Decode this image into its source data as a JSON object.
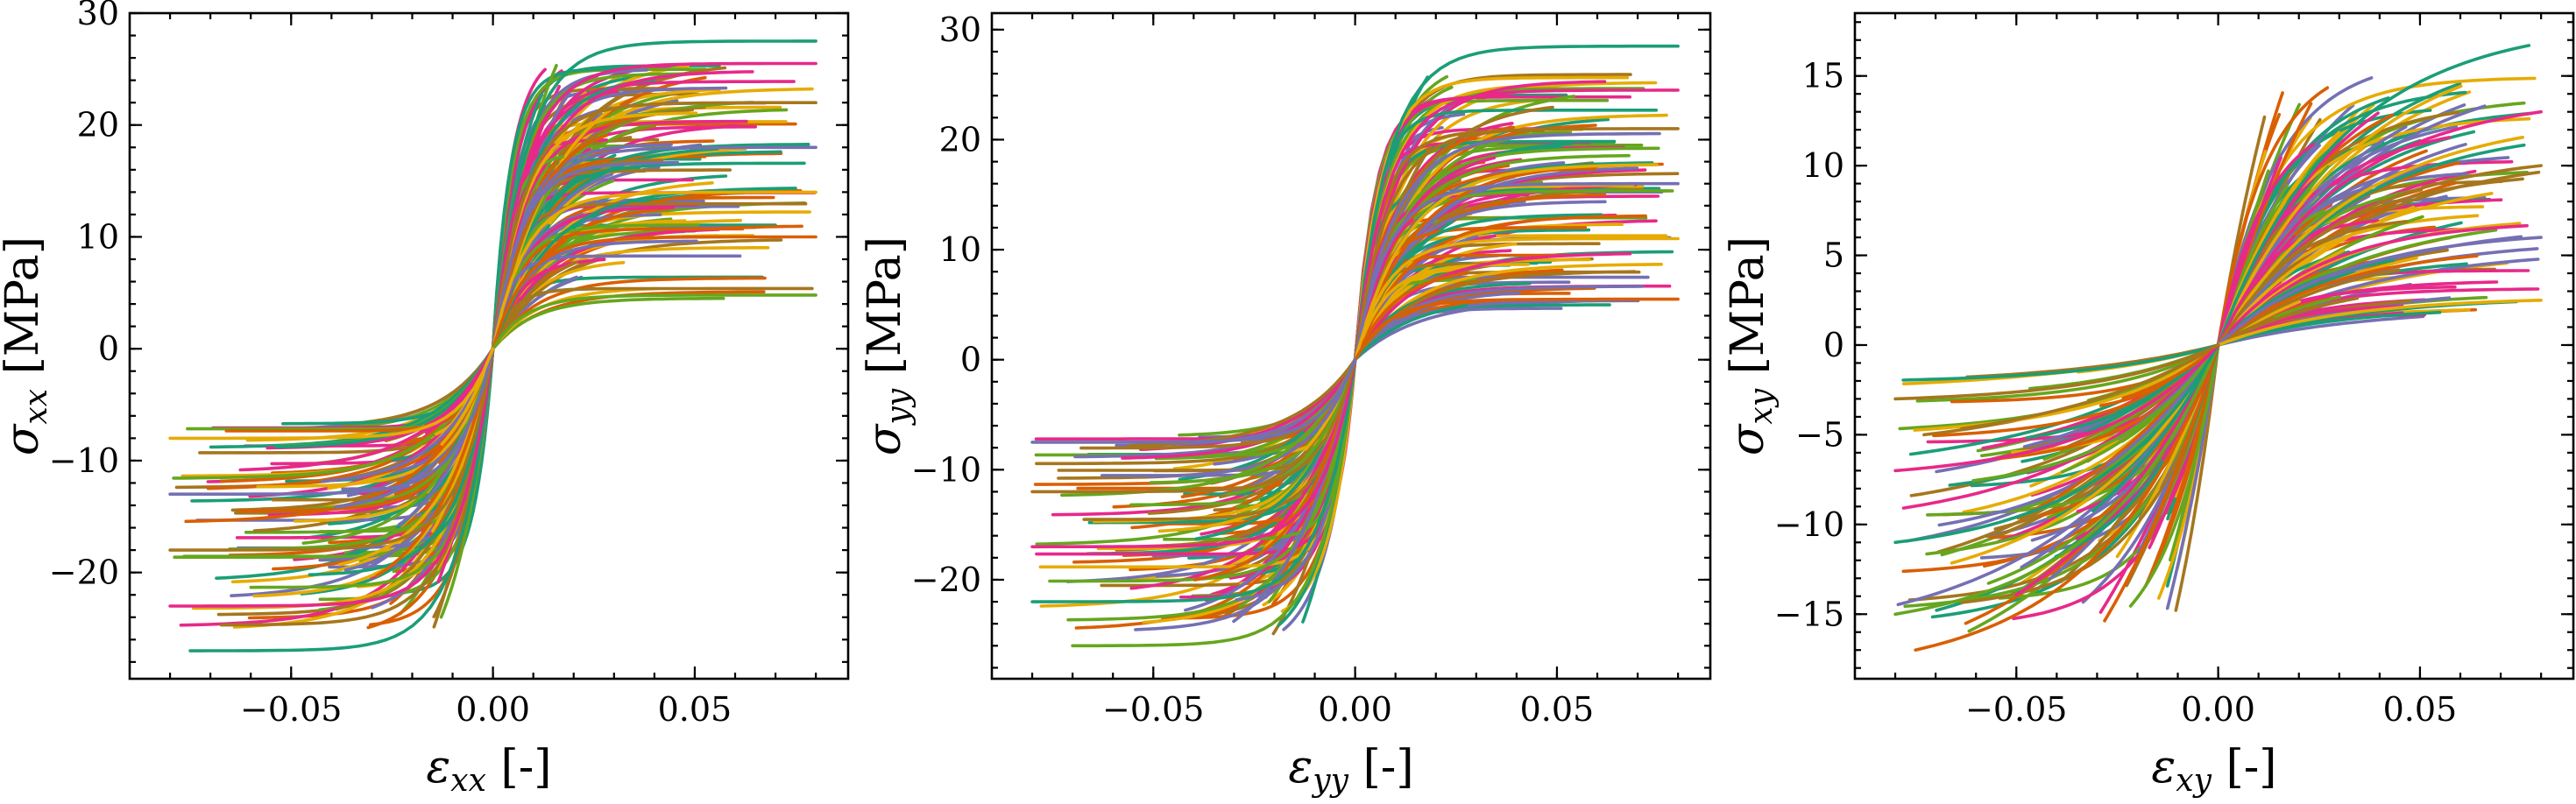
{
  "chart_data": [
    {
      "type": "line",
      "panel": "xx",
      "xlabel_symbol": "ε",
      "xlabel_sub": "xx",
      "xlabel_unit": "[-]",
      "ylabel_symbol": "σ",
      "ylabel_sub": "xx",
      "ylabel_unit": "[MPa]",
      "xlim": [
        -0.09,
        0.088
      ],
      "ylim": [
        -29.5,
        30
      ],
      "xticks": [
        -0.05,
        0.0,
        0.05
      ],
      "xtick_labels": [
        "−0.05",
        "0.00",
        "0.05"
      ],
      "yticks": [
        -20,
        -10,
        0,
        10,
        20,
        30
      ],
      "ytick_labels": [
        "−20",
        "−10",
        "0",
        "10",
        "20",
        "30"
      ],
      "grid": false,
      "description_of_series": "approximately 300 stress–strain curves; positive-strain branches saturate near 5–27 MPa, negative-strain branches saturate near −7 to −27 MPa",
      "series_samples": [
        {
          "x": [
            0,
            0.08
          ],
          "y": [
            0,
            27.5
          ]
        },
        {
          "x": [
            0,
            0.08
          ],
          "y": [
            0,
            25.5
          ]
        },
        {
          "x": [
            0,
            0.08
          ],
          "y": [
            0,
            22
          ]
        },
        {
          "x": [
            0,
            0.08
          ],
          "y": [
            0,
            18
          ]
        },
        {
          "x": [
            0,
            0.08
          ],
          "y": [
            0,
            14
          ]
        },
        {
          "x": [
            0,
            0.08
          ],
          "y": [
            0,
            10
          ]
        },
        {
          "x": [
            0,
            0.08
          ],
          "y": [
            0,
            4.8
          ]
        },
        {
          "x": [
            0,
            -0.075
          ],
          "y": [
            0,
            -27
          ]
        },
        {
          "x": [
            0,
            -0.08
          ],
          "y": [
            0,
            -23
          ]
        },
        {
          "x": [
            0,
            -0.08
          ],
          "y": [
            0,
            -18
          ]
        },
        {
          "x": [
            0,
            -0.08
          ],
          "y": [
            0,
            -13
          ]
        },
        {
          "x": [
            0,
            -0.08
          ],
          "y": [
            0,
            -8
          ]
        }
      ]
    },
    {
      "type": "line",
      "panel": "yy",
      "xlabel_symbol": "ε",
      "xlabel_sub": "yy",
      "xlabel_unit": "[-]",
      "ylabel_symbol": "σ",
      "ylabel_sub": "yy",
      "ylabel_unit": "[MPa]",
      "xlim": [
        -0.09,
        0.088
      ],
      "ylim": [
        -29,
        31.5
      ],
      "xticks": [
        -0.05,
        0.0,
        0.05
      ],
      "xtick_labels": [
        "−0.05",
        "0.00",
        "0.05"
      ],
      "yticks": [
        -20,
        -10,
        0,
        10,
        20,
        30
      ],
      "ytick_labels": [
        "−20",
        "−10",
        "0",
        "10",
        "20",
        "30"
      ],
      "grid": false,
      "description_of_series": "approximately 300 stress–strain curves; positive-strain branches saturate near 5–28.5 MPa, negative-strain branches saturate near −7 to −26 MPa",
      "series_samples": [
        {
          "x": [
            0,
            0.08
          ],
          "y": [
            0,
            28.5
          ]
        },
        {
          "x": [
            0,
            0.08
          ],
          "y": [
            0,
            24.5
          ]
        },
        {
          "x": [
            0,
            0.08
          ],
          "y": [
            0,
            21
          ]
        },
        {
          "x": [
            0,
            0.08
          ],
          "y": [
            0,
            16
          ]
        },
        {
          "x": [
            0,
            0.08
          ],
          "y": [
            0,
            11
          ]
        },
        {
          "x": [
            0,
            0.08
          ],
          "y": [
            0,
            5.5
          ]
        },
        {
          "x": [
            0,
            -0.07
          ],
          "y": [
            0,
            -26
          ]
        },
        {
          "x": [
            0,
            -0.08
          ],
          "y": [
            0,
            -22
          ]
        },
        {
          "x": [
            0,
            -0.08
          ],
          "y": [
            0,
            -17
          ]
        },
        {
          "x": [
            0,
            -0.08
          ],
          "y": [
            0,
            -12
          ]
        },
        {
          "x": [
            0,
            -0.08
          ],
          "y": [
            0,
            -7.5
          ]
        }
      ]
    },
    {
      "type": "line",
      "panel": "xy",
      "xlabel_symbol": "ε",
      "xlabel_sub": "xy",
      "xlabel_unit": "[-]",
      "ylabel_symbol": "σ",
      "ylabel_sub": "xy",
      "ylabel_unit": "[MPa]",
      "xlim": [
        -0.09,
        0.088
      ],
      "ylim": [
        -18.6,
        18.5
      ],
      "xticks": [
        -0.05,
        0.0,
        0.05
      ],
      "xtick_labels": [
        "−0.05",
        "0.00",
        "0.05"
      ],
      "yticks": [
        -15,
        -10,
        -5,
        0,
        5,
        10,
        15
      ],
      "ytick_labels": [
        "−15",
        "−10",
        "−5",
        "0",
        "5",
        "10",
        "15"
      ],
      "grid": false,
      "description_of_series": "approximately 300 shear stress–strain curves; positive-strain branches reach 2.5–16.7 MPa, negative-strain branches reach −2 to −17 MPa with gradual hardening",
      "series_samples": [
        {
          "x": [
            0,
            0.077
          ],
          "y": [
            0,
            16.7
          ]
        },
        {
          "x": [
            0,
            0.08
          ],
          "y": [
            0,
            13
          ]
        },
        {
          "x": [
            0,
            0.08
          ],
          "y": [
            0,
            10
          ]
        },
        {
          "x": [
            0,
            0.08
          ],
          "y": [
            0,
            6
          ]
        },
        {
          "x": [
            0,
            0.08
          ],
          "y": [
            0,
            2.5
          ]
        },
        {
          "x": [
            0,
            -0.075
          ],
          "y": [
            0,
            -17
          ]
        },
        {
          "x": [
            0,
            -0.08
          ],
          "y": [
            0,
            -15
          ]
        },
        {
          "x": [
            0,
            -0.08
          ],
          "y": [
            0,
            -11
          ]
        },
        {
          "x": [
            0,
            -0.08
          ],
          "y": [
            0,
            -7
          ]
        },
        {
          "x": [
            0,
            -0.08
          ],
          "y": [
            0,
            -3
          ]
        }
      ]
    }
  ],
  "colors": [
    "#1b9e77",
    "#d95f02",
    "#7570b3",
    "#e7298a",
    "#66a61e",
    "#e6ab02",
    "#a6761d"
  ]
}
